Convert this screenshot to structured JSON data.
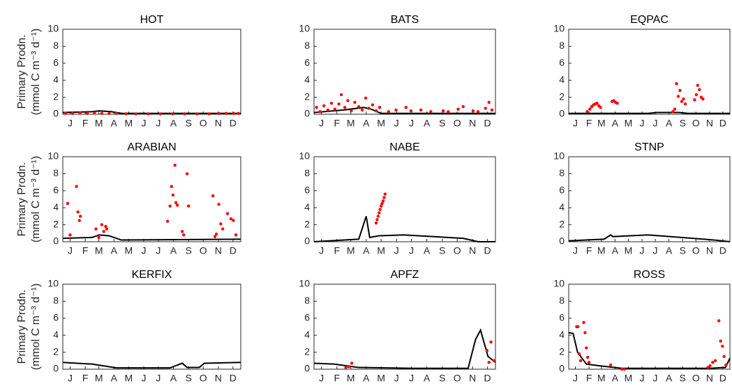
{
  "chart_data": [
    {
      "type": "line",
      "title": "HOT",
      "ylabel": [
        "Primary Prodn.",
        "(mmol C m⁻³ d⁻¹)"
      ],
      "xlim": [
        0,
        365
      ],
      "ylim": [
        0,
        10
      ],
      "yticks": [
        0,
        2,
        4,
        6,
        8,
        10
      ],
      "xticks": [
        {
          "value": 15,
          "label": "J"
        },
        {
          "value": 46,
          "label": "F"
        },
        {
          "value": 74,
          "label": "M"
        },
        {
          "value": 105,
          "label": "A"
        },
        {
          "value": 135,
          "label": "M"
        },
        {
          "value": 166,
          "label": "J"
        },
        {
          "value": 196,
          "label": "J"
        },
        {
          "value": 227,
          "label": "A"
        },
        {
          "value": 258,
          "label": "S"
        },
        {
          "value": 288,
          "label": "O"
        },
        {
          "value": 319,
          "label": "N"
        },
        {
          "value": 349,
          "label": "D"
        }
      ],
      "series": [
        {
          "style": "line",
          "color": "#000000",
          "x": [
            0,
            60,
            75,
            100,
            120,
            365
          ],
          "values": [
            0.2,
            0.3,
            0.4,
            0.3,
            0.1,
            0.1
          ]
        },
        {
          "style": "scatter",
          "color": "#ff0000",
          "x": [
            5,
            20,
            35,
            50,
            65,
            80,
            95,
            110,
            130,
            150,
            175,
            200,
            225,
            250,
            275,
            300,
            320,
            335,
            350,
            360
          ],
          "values": [
            0.1,
            0.1,
            0.15,
            0.1,
            0.15,
            0.1,
            0.1,
            0.1,
            0.05,
            0.05,
            0.05,
            0.05,
            0.05,
            0.05,
            0.05,
            0.05,
            0.1,
            0.1,
            0.1,
            0.1
          ]
        }
      ]
    },
    {
      "type": "line",
      "title": "BATS",
      "xlim": [
        0,
        365
      ],
      "ylim": [
        0,
        10
      ],
      "yticks": [
        0,
        2,
        4,
        6,
        8,
        10
      ],
      "xticks": [
        {
          "value": 15,
          "label": "J"
        },
        {
          "value": 46,
          "label": "F"
        },
        {
          "value": 74,
          "label": "M"
        },
        {
          "value": 105,
          "label": "A"
        },
        {
          "value": 135,
          "label": "M"
        },
        {
          "value": 166,
          "label": "J"
        },
        {
          "value": 196,
          "label": "J"
        },
        {
          "value": 227,
          "label": "A"
        },
        {
          "value": 258,
          "label": "S"
        },
        {
          "value": 288,
          "label": "O"
        },
        {
          "value": 319,
          "label": "N"
        },
        {
          "value": 349,
          "label": "D"
        }
      ],
      "series": [
        {
          "style": "line",
          "color": "#000000",
          "x": [
            0,
            60,
            100,
            115,
            135,
            365
          ],
          "values": [
            0.2,
            0.5,
            0.8,
            0.6,
            0.1,
            0.1
          ]
        },
        {
          "style": "scatter",
          "color": "#ff0000",
          "x": [
            5,
            12,
            20,
            28,
            35,
            42,
            50,
            55,
            62,
            68,
            75,
            82,
            90,
            97,
            104,
            110,
            118,
            125,
            132,
            150,
            165,
            185,
            195,
            215,
            235,
            260,
            270,
            290,
            300,
            320,
            330,
            345,
            352,
            358
          ],
          "values": [
            0.8,
            0.3,
            1.0,
            0.5,
            1.3,
            0.6,
            1.2,
            2.3,
            0.8,
            1.6,
            0.4,
            1.4,
            0.9,
            0.5,
            1.9,
            0.7,
            1.1,
            0.4,
            0.8,
            0.3,
            0.5,
            0.8,
            0.4,
            0.5,
            0.3,
            0.4,
            0.3,
            0.6,
            0.9,
            0.4,
            0.3,
            0.7,
            1.4,
            0.5
          ]
        }
      ]
    },
    {
      "type": "line",
      "title": "EQPAC",
      "xlim": [
        0,
        365
      ],
      "ylim": [
        0,
        10
      ],
      "yticks": [
        0,
        2,
        4,
        6,
        8,
        10
      ],
      "xticks": [
        {
          "value": 15,
          "label": "J"
        },
        {
          "value": 46,
          "label": "F"
        },
        {
          "value": 74,
          "label": "M"
        },
        {
          "value": 105,
          "label": "A"
        },
        {
          "value": 135,
          "label": "M"
        },
        {
          "value": 166,
          "label": "J"
        },
        {
          "value": 196,
          "label": "J"
        },
        {
          "value": 227,
          "label": "A"
        },
        {
          "value": 258,
          "label": "S"
        },
        {
          "value": 288,
          "label": "O"
        },
        {
          "value": 319,
          "label": "N"
        },
        {
          "value": 349,
          "label": "D"
        }
      ],
      "series": [
        {
          "style": "line",
          "color": "#000000",
          "x": [
            0,
            180,
            200,
            250,
            270,
            365
          ],
          "values": [
            0.1,
            0.1,
            0.2,
            0.2,
            0.1,
            0.1
          ]
        },
        {
          "style": "scatter",
          "color": "#ff0000",
          "x": [
            42,
            48,
            52,
            56,
            60,
            64,
            68,
            72,
            98,
            102,
            106,
            110,
            236,
            240,
            244,
            248,
            252,
            256,
            260,
            264,
            285,
            289,
            292,
            296,
            300,
            304
          ],
          "values": [
            0.3,
            0.6,
            0.9,
            1.1,
            1.2,
            1.3,
            1.0,
            0.8,
            1.5,
            1.6,
            1.4,
            1.3,
            0.3,
            0.6,
            3.6,
            2.1,
            2.8,
            1.5,
            1.8,
            1.2,
            1.7,
            2.3,
            3.4,
            2.9,
            2.0,
            1.8
          ]
        }
      ]
    },
    {
      "type": "line",
      "title": "ARABIAN",
      "ylabel": [
        "Primary Prodn.",
        "(mmol C m⁻³ d⁻¹)"
      ],
      "xlim": [
        0,
        365
      ],
      "ylim": [
        0,
        10
      ],
      "yticks": [
        0,
        2,
        4,
        6,
        8,
        10
      ],
      "xticks": [
        {
          "value": 15,
          "label": "J"
        },
        {
          "value": 46,
          "label": "F"
        },
        {
          "value": 74,
          "label": "M"
        },
        {
          "value": 105,
          "label": "A"
        },
        {
          "value": 135,
          "label": "M"
        },
        {
          "value": 166,
          "label": "J"
        },
        {
          "value": 196,
          "label": "J"
        },
        {
          "value": 227,
          "label": "A"
        },
        {
          "value": 258,
          "label": "S"
        },
        {
          "value": 288,
          "label": "O"
        },
        {
          "value": 319,
          "label": "N"
        },
        {
          "value": 349,
          "label": "D"
        }
      ],
      "series": [
        {
          "style": "line",
          "color": "#000000",
          "x": [
            0,
            60,
            75,
            95,
            120,
            365
          ],
          "values": [
            0.4,
            0.5,
            0.8,
            0.7,
            0.2,
            0.3
          ]
        },
        {
          "style": "scatter",
          "color": "#ff0000",
          "x": [
            10,
            15,
            28,
            31,
            34,
            36,
            68,
            74,
            80,
            84,
            88,
            90,
            215,
            220,
            223,
            226,
            230,
            232,
            235,
            245,
            248,
            255,
            258,
            308,
            312,
            315,
            320,
            324,
            328,
            338,
            345,
            350,
            355
          ],
          "values": [
            4.5,
            0.8,
            6.5,
            3.5,
            2.5,
            3.0,
            1.5,
            0.5,
            2.0,
            1.2,
            1.8,
            1.5,
            2.4,
            4.2,
            6.5,
            5.5,
            9.0,
            4.6,
            4.3,
            1.2,
            0.8,
            8.0,
            4.2,
            5.4,
            0.6,
            0.9,
            4.4,
            2.1,
            1.5,
            3.3,
            2.7,
            2.5,
            0.8
          ]
        }
      ]
    },
    {
      "type": "line",
      "title": "NABE",
      "xlim": [
        0,
        365
      ],
      "ylim": [
        0,
        10
      ],
      "yticks": [
        0,
        2,
        4,
        6,
        8,
        10
      ],
      "xticks": [
        {
          "value": 15,
          "label": "J"
        },
        {
          "value": 46,
          "label": "F"
        },
        {
          "value": 74,
          "label": "M"
        },
        {
          "value": 105,
          "label": "A"
        },
        {
          "value": 135,
          "label": "M"
        },
        {
          "value": 166,
          "label": "J"
        },
        {
          "value": 196,
          "label": "J"
        },
        {
          "value": 227,
          "label": "A"
        },
        {
          "value": 258,
          "label": "S"
        },
        {
          "value": 288,
          "label": "O"
        },
        {
          "value": 319,
          "label": "N"
        },
        {
          "value": 349,
          "label": "D"
        }
      ],
      "series": [
        {
          "style": "line",
          "color": "#000000",
          "x": [
            0,
            90,
            105,
            112,
            130,
            180,
            300,
            330,
            365
          ],
          "values": [
            0,
            0.3,
            3.0,
            0.5,
            0.7,
            0.8,
            0.4,
            0,
            0
          ]
        },
        {
          "style": "scatter",
          "color": "#ff0000",
          "x": [
            125,
            127,
            129,
            131,
            133,
            135,
            137,
            139,
            141,
            143
          ],
          "values": [
            2.2,
            2.6,
            3.0,
            3.4,
            3.8,
            4.2,
            4.5,
            4.8,
            5.2,
            5.6
          ]
        }
      ]
    },
    {
      "type": "line",
      "title": "STNP",
      "xlim": [
        0,
        365
      ],
      "ylim": [
        0,
        10
      ],
      "yticks": [
        0,
        2,
        4,
        6,
        8,
        10
      ],
      "xticks": [
        {
          "value": 15,
          "label": "J"
        },
        {
          "value": 46,
          "label": "F"
        },
        {
          "value": 74,
          "label": "M"
        },
        {
          "value": 105,
          "label": "A"
        },
        {
          "value": 135,
          "label": "M"
        },
        {
          "value": 166,
          "label": "J"
        },
        {
          "value": 196,
          "label": "J"
        },
        {
          "value": 227,
          "label": "A"
        },
        {
          "value": 258,
          "label": "S"
        },
        {
          "value": 288,
          "label": "O"
        },
        {
          "value": 319,
          "label": "N"
        },
        {
          "value": 349,
          "label": "D"
        }
      ],
      "series": [
        {
          "style": "line",
          "color": "#000000",
          "x": [
            0,
            40,
            80,
            95,
            100,
            180,
            330,
            365
          ],
          "values": [
            0.1,
            0.2,
            0.3,
            0.8,
            0.6,
            0.8,
            0.2,
            0
          ]
        }
      ]
    },
    {
      "type": "line",
      "title": "KERFIX",
      "ylabel": [
        "Primary Prodn.",
        "(mmol C m⁻³ d⁻¹)"
      ],
      "xlim": [
        0,
        365
      ],
      "ylim": [
        0,
        10
      ],
      "yticks": [
        0,
        2,
        4,
        6,
        8,
        10
      ],
      "xticks": [
        {
          "value": 15,
          "label": "J"
        },
        {
          "value": 46,
          "label": "F"
        },
        {
          "value": 74,
          "label": "M"
        },
        {
          "value": 105,
          "label": "A"
        },
        {
          "value": 135,
          "label": "M"
        },
        {
          "value": 166,
          "label": "J"
        },
        {
          "value": 196,
          "label": "J"
        },
        {
          "value": 227,
          "label": "A"
        },
        {
          "value": 258,
          "label": "S"
        },
        {
          "value": 288,
          "label": "O"
        },
        {
          "value": 319,
          "label": "N"
        },
        {
          "value": 349,
          "label": "D"
        }
      ],
      "series": [
        {
          "style": "line",
          "color": "#000000",
          "x": [
            0,
            60,
            110,
            220,
            245,
            255,
            280,
            290,
            365
          ],
          "values": [
            0.8,
            0.6,
            0.15,
            0.15,
            0.7,
            0.2,
            0.2,
            0.7,
            0.8
          ]
        }
      ]
    },
    {
      "type": "line",
      "title": "APFZ",
      "xlim": [
        0,
        365
      ],
      "ylim": [
        0,
        10
      ],
      "yticks": [
        0,
        2,
        4,
        6,
        8,
        10
      ],
      "xticks": [
        {
          "value": 15,
          "label": "J"
        },
        {
          "value": 46,
          "label": "F"
        },
        {
          "value": 74,
          "label": "M"
        },
        {
          "value": 105,
          "label": "A"
        },
        {
          "value": 135,
          "label": "M"
        },
        {
          "value": 166,
          "label": "J"
        },
        {
          "value": 196,
          "label": "J"
        },
        {
          "value": 227,
          "label": "A"
        },
        {
          "value": 258,
          "label": "S"
        },
        {
          "value": 288,
          "label": "O"
        },
        {
          "value": 319,
          "label": "N"
        },
        {
          "value": 349,
          "label": "D"
        }
      ],
      "series": [
        {
          "style": "line",
          "color": "#000000",
          "x": [
            0,
            40,
            90,
            200,
            310,
            325,
            335,
            350,
            365
          ],
          "values": [
            0.7,
            0.6,
            0.2,
            0.1,
            0.1,
            3.5,
            4.6,
            1.5,
            0.8
          ]
        },
        {
          "style": "scatter",
          "color": "#ff0000",
          "x": [
            64,
            70,
            76,
            348,
            352,
            356,
            362
          ],
          "values": [
            0.2,
            0.3,
            0.7,
            2.2,
            0.8,
            3.2,
            1.0
          ]
        }
      ]
    },
    {
      "type": "line",
      "title": "ROSS",
      "xlim": [
        0,
        365
      ],
      "ylim": [
        0,
        10
      ],
      "yticks": [
        0,
        2,
        4,
        6,
        8,
        10
      ],
      "xticks": [
        {
          "value": 15,
          "label": "J"
        },
        {
          "value": 46,
          "label": "F"
        },
        {
          "value": 74,
          "label": "M"
        },
        {
          "value": 105,
          "label": "A"
        },
        {
          "value": 135,
          "label": "M"
        },
        {
          "value": 166,
          "label": "J"
        },
        {
          "value": 196,
          "label": "J"
        },
        {
          "value": 227,
          "label": "A"
        },
        {
          "value": 258,
          "label": "S"
        },
        {
          "value": 288,
          "label": "O"
        },
        {
          "value": 319,
          "label": "N"
        },
        {
          "value": 349,
          "label": "D"
        }
      ],
      "series": [
        {
          "style": "line",
          "color": "#000000",
          "x": [
            0,
            10,
            20,
            40,
            70,
            120,
            320,
            355,
            365
          ],
          "values": [
            4.3,
            4.2,
            2.0,
            0.6,
            0.4,
            0.1,
            0.1,
            0.2,
            1.3
          ]
        },
        {
          "style": "scatter",
          "color": "#ff0000",
          "x": [
            18,
            21,
            24,
            27,
            34,
            37,
            40,
            43,
            46,
            95,
            120,
            126,
            315,
            320,
            326,
            332,
            340,
            344,
            348,
            352,
            356
          ],
          "values": [
            5.0,
            5.0,
            1.8,
            1.0,
            5.5,
            4.3,
            2.5,
            1.4,
            0.8,
            0.5,
            0,
            0,
            0.2,
            0.4,
            0.8,
            1.0,
            5.7,
            3.3,
            2.7,
            1.5,
            0.5
          ]
        }
      ]
    }
  ]
}
